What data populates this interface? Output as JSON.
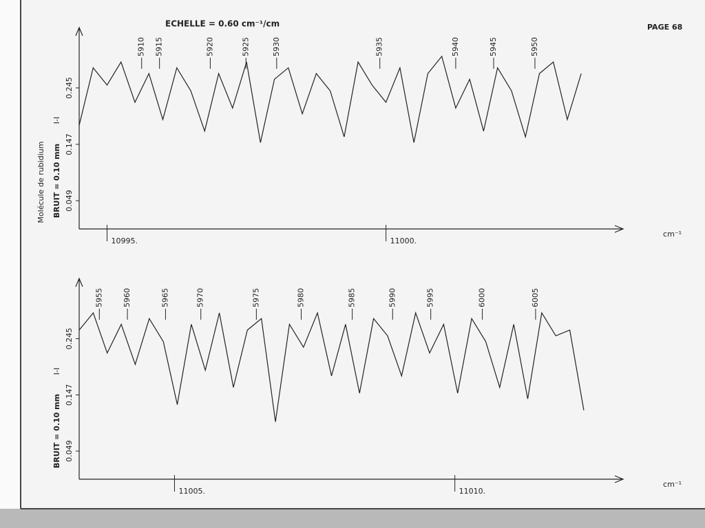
{
  "page": "PAGE 68",
  "title": "ECHELLE = 0.60 cm⁻¹/cm",
  "molecule": "Molécule de rubidium",
  "chart_data": [
    {
      "type": "line",
      "ylabel": "BRUIT = 0.10 mm",
      "scale_mark": "I-I",
      "xlabel": "cm⁻¹",
      "xlim": [
        10994.5,
        11004.25
      ],
      "ylim": [
        0,
        0.35
      ],
      "xticks": [
        {
          "value": 10995,
          "label": "10995."
        },
        {
          "value": 11000,
          "label": "11000."
        }
      ],
      "yticks": [
        0.049,
        0.147,
        0.245
      ],
      "annotations": [
        {
          "text": "5910",
          "x": 10995.62
        },
        {
          "text": "5915",
          "x": 10995.94
        },
        {
          "text": "5920",
          "x": 10996.85
        },
        {
          "text": "5925",
          "x": 10997.49
        },
        {
          "text": "5930",
          "x": 10998.04
        },
        {
          "text": "5935",
          "x": 10999.89
        },
        {
          "text": "5940",
          "x": 11001.25
        },
        {
          "text": "5945",
          "x": 11001.93
        },
        {
          "text": "5950",
          "x": 11002.67
        }
      ],
      "color": "#222222",
      "x": [
        10994.5,
        10994.75,
        10995,
        10995.25,
        10995.5,
        10995.75,
        10996,
        10996.25,
        10996.5,
        10996.75,
        10997,
        10997.25,
        10997.5,
        10997.75,
        10998,
        10998.25,
        10998.5,
        10998.75,
        10999,
        10999.25,
        10999.5,
        10999.75,
        11000,
        11000.25,
        11000.5,
        11000.75,
        11001,
        11001.25,
        11001.5,
        11001.75,
        11002,
        11002.25,
        11002.5,
        11002.75,
        11003,
        11003.25,
        11003.5
      ],
      "values": [
        0.18,
        0.28,
        0.25,
        0.29,
        0.22,
        0.27,
        0.19,
        0.28,
        0.24,
        0.17,
        0.27,
        0.21,
        0.29,
        0.15,
        0.26,
        0.28,
        0.2,
        0.27,
        0.24,
        0.16,
        0.29,
        0.25,
        0.22,
        0.28,
        0.15,
        0.27,
        0.3,
        0.21,
        0.26,
        0.17,
        0.28,
        0.24,
        0.16,
        0.27,
        0.29,
        0.19,
        0.27
      ]
    },
    {
      "type": "line",
      "ylabel": "BRUIT = 0.10 mm",
      "scale_mark": "I-I",
      "xlabel": "cm⁻¹",
      "xlim": [
        11003.3,
        11013.0
      ],
      "ylim": [
        0,
        0.35
      ],
      "xticks": [
        {
          "value": 11005,
          "label": "11005."
        },
        {
          "value": 11010,
          "label": "11010."
        }
      ],
      "yticks": [
        0.049,
        0.147,
        0.245
      ],
      "annotations": [
        {
          "text": "5955",
          "x": 11003.66
        },
        {
          "text": "5960",
          "x": 11004.16
        },
        {
          "text": "5965",
          "x": 11004.84
        },
        {
          "text": "5970",
          "x": 11005.47
        },
        {
          "text": "5975",
          "x": 11006.46
        },
        {
          "text": "5980",
          "x": 11007.26
        },
        {
          "text": "5985",
          "x": 11008.17
        },
        {
          "text": "5990",
          "x": 11008.89
        },
        {
          "text": "5995",
          "x": 11009.57
        },
        {
          "text": "6000",
          "x": 11010.49
        },
        {
          "text": "6005",
          "x": 11011.44
        }
      ],
      "color": "#222222",
      "x": [
        11003.3,
        11003.55,
        11003.8,
        11004.05,
        11004.3,
        11004.55,
        11004.8,
        11005.05,
        11005.3,
        11005.55,
        11005.8,
        11006.05,
        11006.3,
        11006.55,
        11006.8,
        11007.05,
        11007.3,
        11007.55,
        11007.8,
        11008.05,
        11008.3,
        11008.55,
        11008.8,
        11009.05,
        11009.3,
        11009.55,
        11009.8,
        11010.05,
        11010.3,
        11010.55,
        11010.8,
        11011.05,
        11011.3,
        11011.55,
        11011.8,
        11012.05,
        11012.3
      ],
      "values": [
        0.26,
        0.29,
        0.22,
        0.27,
        0.2,
        0.28,
        0.24,
        0.13,
        0.27,
        0.19,
        0.29,
        0.16,
        0.26,
        0.28,
        0.1,
        0.27,
        0.23,
        0.29,
        0.18,
        0.27,
        0.15,
        0.28,
        0.25,
        0.18,
        0.29,
        0.22,
        0.27,
        0.15,
        0.28,
        0.24,
        0.16,
        0.27,
        0.14,
        0.29,
        0.25,
        0.26,
        0.12
      ]
    }
  ]
}
